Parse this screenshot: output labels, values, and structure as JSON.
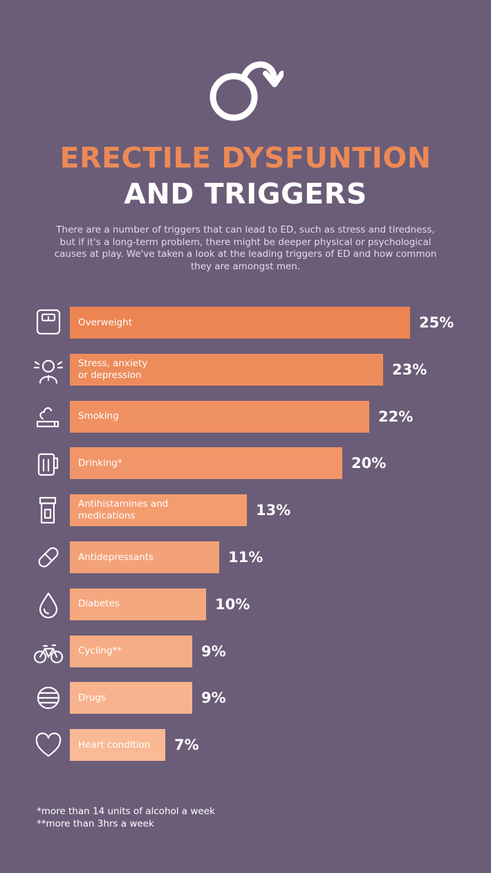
{
  "header": {
    "title_line1": "ERECTILE DYSFUNTION",
    "title_line2": "AND TRIGGERS",
    "intro": "There are a number of triggers that can lead to ED, such as stress and tiredness, but if it's a long-term problem, there might be deeper physical or psychological causes at play. We've taken a look at the leading triggers of ED and how common they are amongst men.",
    "logo_icon": "male-symbol-arrow-icon"
  },
  "colors": {
    "background": "#6b5c78",
    "title_accent": "#ec8a56",
    "bar_darkest": "#ec8553",
    "bar_lightest": "#f9b995"
  },
  "chart_data": {
    "type": "bar",
    "orientation": "horizontal",
    "categories": [
      "Overweight",
      "Stress, anxiety\nor depression",
      "Smoking",
      "Drinking*",
      "Antihistamines and\nmedications",
      "Antidepressants",
      "Diabetes",
      "Cycling**",
      "Drugs",
      "Heart condition"
    ],
    "values": [
      25,
      23,
      22,
      20,
      13,
      11,
      10,
      9,
      9,
      7
    ],
    "value_labels": [
      "25%",
      "23%",
      "22%",
      "20%",
      "13%",
      "11%",
      "10%",
      "9%",
      "9%",
      "7%"
    ],
    "icons": [
      "scale-icon",
      "stressed-person-icon",
      "cigarette-icon",
      "beer-mug-icon",
      "medicine-bottle-icon",
      "capsule-icon",
      "blood-drop-icon",
      "bicycle-icon",
      "pills-icon",
      "heart-icon"
    ],
    "unit": "%",
    "xlim": [
      0,
      25
    ]
  },
  "footnotes": {
    "note1": "*more than 14 units of alcohol a week",
    "note2": "**more than 3hrs a week"
  }
}
